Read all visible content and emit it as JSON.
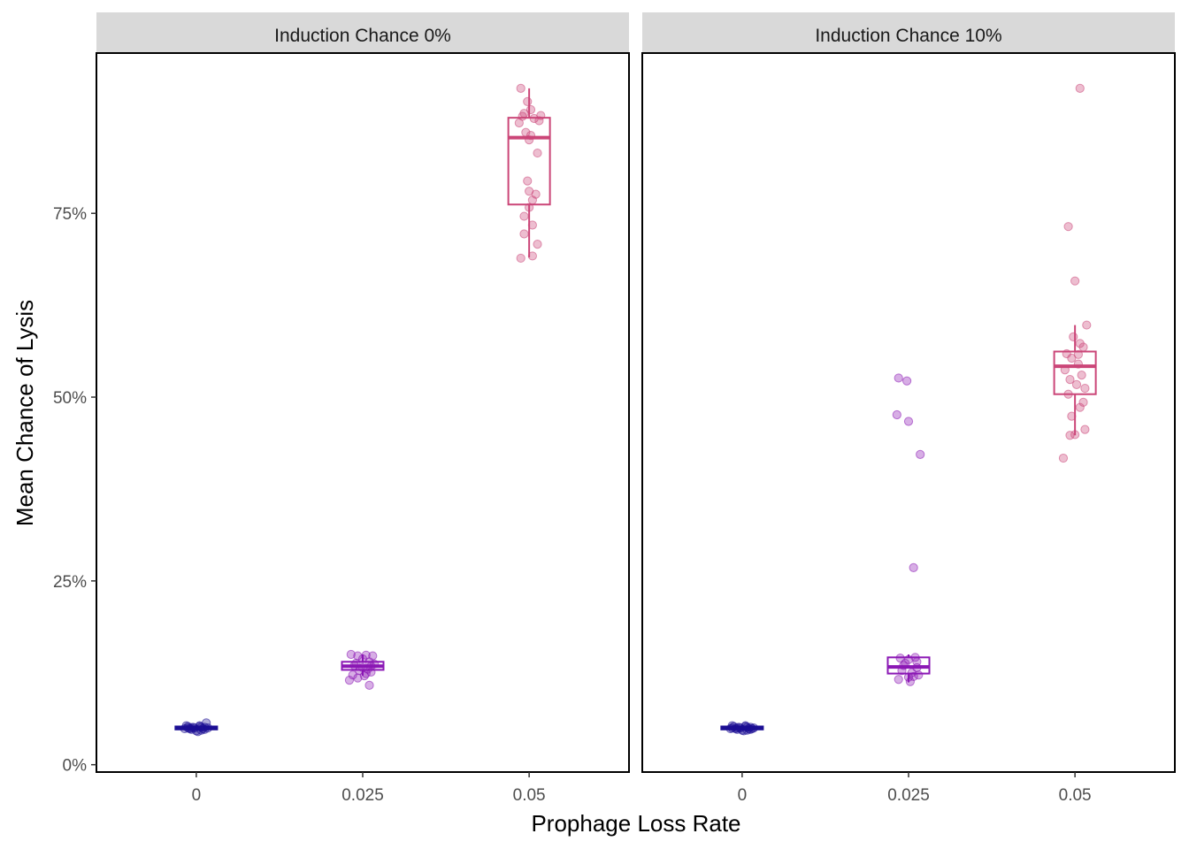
{
  "chart_data": {
    "type": "boxplot",
    "xlabel": "Prophage Loss Rate",
    "ylabel": "Mean Chance of Lysis",
    "x_categories": [
      "0",
      "0.025",
      "0.05"
    ],
    "y_ticks": [
      {
        "value": 0,
        "label": "0%"
      },
      {
        "value": 25,
        "label": "25%"
      },
      {
        "value": 50,
        "label": "50%"
      },
      {
        "value": 75,
        "label": "75%"
      }
    ],
    "ylim": [
      -1,
      96.8
    ],
    "grid": false,
    "legend": "none",
    "colors": {
      "0": "#1c0f94",
      "0.025": "#8b18b5",
      "0.05": "#cb4678"
    },
    "panels": [
      {
        "title": "Induction Chance 0%",
        "boxes": [
          {
            "x": "0",
            "q1": 4.8,
            "median": 5.0,
            "q3": 5.2,
            "whisker_low": 4.6,
            "whisker_high": 5.4,
            "points": [
              [
                -0.05,
                5.0
              ],
              [
                -0.03,
                4.8
              ],
              [
                0.02,
                5.2
              ],
              [
                0.05,
                5.1
              ],
              [
                -0.04,
                4.9
              ],
              [
                0.06,
                5.7
              ],
              [
                0.01,
                4.5
              ],
              [
                -0.06,
                5.3
              ],
              [
                0.03,
                4.7
              ],
              [
                -0.01,
                5.0
              ],
              [
                0.04,
                4.9
              ],
              [
                -0.02,
                5.1
              ],
              [
                0.07,
                5.0
              ],
              [
                -0.07,
                4.9
              ],
              [
                0.0,
                4.6
              ],
              [
                0.02,
                5.3
              ],
              [
                -0.05,
                5.2
              ],
              [
                0.05,
                4.8
              ],
              [
                -0.03,
                5.0
              ],
              [
                0.03,
                5.1
              ]
            ]
          },
          {
            "x": "0.025",
            "q1": 12.9,
            "median": 13.4,
            "q3": 14.0,
            "whisker_low": 12.1,
            "whisker_high": 15.0,
            "points": [
              [
                -0.07,
                15.0
              ],
              [
                -0.03,
                14.8
              ],
              [
                0.02,
                14.9
              ],
              [
                0.06,
                14.8
              ],
              [
                0.04,
                14.0
              ],
              [
                -0.05,
                13.5
              ],
              [
                0.0,
                13.2
              ],
              [
                0.03,
                13.0
              ],
              [
                -0.02,
                12.8
              ],
              [
                0.05,
                12.6
              ],
              [
                -0.06,
                12.2
              ],
              [
                -0.03,
                11.8
              ],
              [
                0.02,
                12.4
              ],
              [
                0.07,
                13.7
              ],
              [
                0.04,
                10.8
              ],
              [
                -0.08,
                11.5
              ],
              [
                0.0,
                14.4
              ],
              [
                -0.04,
                13.8
              ],
              [
                0.05,
                13.4
              ],
              [
                0.01,
                12.1
              ]
            ]
          },
          {
            "x": "0.05",
            "q1": 76.2,
            "median": 85.3,
            "q3": 88.0,
            "whisker_low": 69.0,
            "whisker_high": 92.0,
            "points": [
              [
                -0.05,
                92.0
              ],
              [
                -0.01,
                90.2
              ],
              [
                0.01,
                89.1
              ],
              [
                -0.03,
                88.6
              ],
              [
                0.03,
                87.9
              ],
              [
                0.06,
                87.6
              ],
              [
                -0.06,
                87.3
              ],
              [
                -0.02,
                86.0
              ],
              [
                0.0,
                85.0
              ],
              [
                0.05,
                83.2
              ],
              [
                -0.01,
                79.4
              ],
              [
                0.0,
                78.0
              ],
              [
                0.04,
                77.6
              ],
              [
                0.02,
                76.8
              ],
              [
                0.0,
                75.8
              ],
              [
                -0.03,
                74.6
              ],
              [
                0.02,
                73.4
              ],
              [
                -0.03,
                72.2
              ],
              [
                0.05,
                70.8
              ],
              [
                -0.05,
                68.9
              ],
              [
                0.02,
                69.2
              ],
              [
                -0.04,
                88.2
              ],
              [
                0.07,
                88.3
              ],
              [
                0.01,
                85.6
              ]
            ]
          }
        ]
      },
      {
        "title": "Induction Chance 10%",
        "boxes": [
          {
            "x": "0",
            "q1": 4.8,
            "median": 5.0,
            "q3": 5.2,
            "whisker_low": 4.6,
            "whisker_high": 5.4,
            "points": [
              [
                -0.06,
                5.0
              ],
              [
                -0.03,
                4.8
              ],
              [
                0.02,
                5.2
              ],
              [
                0.05,
                5.1
              ],
              [
                -0.04,
                4.9
              ],
              [
                0.01,
                4.6
              ],
              [
                -0.06,
                5.3
              ],
              [
                0.03,
                4.7
              ],
              [
                -0.01,
                5.0
              ],
              [
                0.04,
                4.9
              ],
              [
                -0.02,
                5.1
              ],
              [
                0.07,
                5.0
              ],
              [
                -0.07,
                4.9
              ],
              [
                0.0,
                4.7
              ],
              [
                0.02,
                5.3
              ],
              [
                -0.05,
                5.2
              ],
              [
                0.05,
                4.8
              ],
              [
                -0.03,
                5.0
              ],
              [
                0.03,
                5.1
              ],
              [
                0.06,
                4.9
              ]
            ]
          },
          {
            "x": "0.025",
            "q1": 12.4,
            "median": 13.3,
            "q3": 14.6,
            "whisker_low": 11.2,
            "whisker_high": 15.0,
            "points": [
              [
                -0.06,
                52.6
              ],
              [
                -0.01,
                52.2
              ],
              [
                -0.07,
                47.6
              ],
              [
                0.0,
                46.7
              ],
              [
                0.07,
                42.2
              ],
              [
                0.03,
                26.8
              ],
              [
                -0.05,
                14.5
              ],
              [
                0.0,
                14.3
              ],
              [
                0.04,
                14.6
              ],
              [
                -0.02,
                13.8
              ],
              [
                0.05,
                13.2
              ],
              [
                -0.04,
                12.8
              ],
              [
                0.02,
                12.5
              ],
              [
                0.06,
                12.2
              ],
              [
                -0.06,
                11.6
              ],
              [
                0.0,
                11.9
              ],
              [
                0.03,
                12.0
              ],
              [
                -0.03,
                13.5
              ],
              [
                0.05,
                14.0
              ],
              [
                0.01,
                11.3
              ]
            ]
          },
          {
            "x": "0.05",
            "q1": 50.4,
            "median": 54.2,
            "q3": 56.2,
            "whisker_low": 44.8,
            "whisker_high": 59.8,
            "points": [
              [
                0.03,
                92.0
              ],
              [
                -0.04,
                73.2
              ],
              [
                0.0,
                65.8
              ],
              [
                0.07,
                59.8
              ],
              [
                -0.01,
                58.2
              ],
              [
                0.03,
                57.3
              ],
              [
                0.05,
                56.8
              ],
              [
                -0.05,
                55.9
              ],
              [
                -0.02,
                55.3
              ],
              [
                0.02,
                54.5
              ],
              [
                -0.06,
                53.7
              ],
              [
                0.04,
                53.0
              ],
              [
                -0.03,
                52.4
              ],
              [
                0.01,
                51.7
              ],
              [
                0.06,
                51.2
              ],
              [
                -0.04,
                50.4
              ],
              [
                0.05,
                49.3
              ],
              [
                0.03,
                48.6
              ],
              [
                -0.02,
                47.4
              ],
              [
                0.06,
                45.6
              ],
              [
                -0.03,
                44.8
              ],
              [
                0.0,
                44.9
              ],
              [
                -0.07,
                41.7
              ],
              [
                0.02,
                55.8
              ]
            ]
          }
        ]
      }
    ]
  }
}
